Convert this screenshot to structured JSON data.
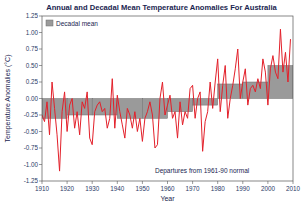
{
  "chart_data": {
    "type": "bar",
    "title": "Annual and Decadal Mean Temperature Anomalies For Australia",
    "x_label": "Year",
    "y_label": "Temperature Anomalies (°C)",
    "annotation": "Departures from 1961-90 normal",
    "xlim": [
      1910,
      2010
    ],
    "xticks": [
      1910,
      1920,
      1930,
      1940,
      1950,
      1960,
      1970,
      1980,
      1990,
      2000,
      2010
    ],
    "ylim": [
      -1.25,
      1.25
    ],
    "yticks": [
      -1.25,
      {
        "value": -1,
        "label": "-1.00"
      },
      -0.75,
      {
        "value": -0.5,
        "label": "-0.50"
      },
      -0.25,
      {
        "value": 0,
        "label": "0.00"
      },
      0.25,
      {
        "value": 0.5,
        "label": "0.50"
      },
      0.75,
      {
        "value": 1,
        "label": "1.00"
      },
      1.25
    ],
    "grid": false,
    "legend": "top-left",
    "series": [
      {
        "name": "Decadal mean",
        "type": "bar",
        "color": "#9a9a9a",
        "bins": [
          1910,
          1920,
          1930,
          1940,
          1950,
          1960,
          1970,
          1980,
          1990,
          2000,
          2010
        ],
        "values": [
          -0.3,
          -0.25,
          -0.25,
          -0.3,
          -0.3,
          -0.2,
          -0.1,
          0.22,
          0.25,
          0.5
        ]
      },
      {
        "type": "line",
        "color": "#e3202a",
        "x": [
          1910,
          1911,
          1912,
          1913,
          1914,
          1915,
          1916,
          1917,
          1918,
          1919,
          1920,
          1921,
          1922,
          1923,
          1924,
          1925,
          1926,
          1927,
          1928,
          1929,
          1930,
          1931,
          1932,
          1933,
          1934,
          1935,
          1936,
          1937,
          1938,
          1939,
          1940,
          1941,
          1942,
          1943,
          1944,
          1945,
          1946,
          1947,
          1948,
          1949,
          1950,
          1951,
          1952,
          1953,
          1954,
          1955,
          1956,
          1957,
          1958,
          1959,
          1960,
          1961,
          1962,
          1963,
          1964,
          1965,
          1966,
          1967,
          1968,
          1969,
          1970,
          1971,
          1972,
          1973,
          1974,
          1975,
          1976,
          1977,
          1978,
          1979,
          1980,
          1981,
          1982,
          1983,
          1984,
          1985,
          1986,
          1987,
          1988,
          1989,
          1990,
          1991,
          1992,
          1993,
          1994,
          1995,
          1996,
          1997,
          1998,
          1999,
          2000,
          2001,
          2002,
          2003,
          2004,
          2005,
          2006,
          2007,
          2008,
          2009
        ],
        "values": [
          -0.25,
          -0.35,
          -0.05,
          -0.55,
          0.25,
          -0.15,
          -0.55,
          -1.1,
          -0.2,
          0.1,
          -0.5,
          -0.1,
          0.0,
          -0.45,
          -0.2,
          -0.55,
          -0.05,
          -0.15,
          0.1,
          -0.6,
          -0.7,
          -0.2,
          -0.1,
          -0.05,
          -0.2,
          -0.15,
          -0.45,
          -0.3,
          0.3,
          -0.45,
          0.05,
          -0.2,
          -0.4,
          -0.6,
          -0.15,
          -0.25,
          -0.45,
          -0.2,
          -0.5,
          -0.3,
          -0.65,
          -0.3,
          -0.2,
          -0.05,
          -0.25,
          -0.75,
          -0.7,
          0.0,
          0.25,
          -0.25,
          -0.1,
          0.05,
          -0.3,
          -0.2,
          -0.6,
          -0.05,
          -0.4,
          -0.2,
          -0.3,
          0.15,
          0.2,
          -0.3,
          0.0,
          0.1,
          -0.8,
          -0.35,
          -0.2,
          0.25,
          -0.15,
          0.25,
          0.6,
          -0.2,
          0.2,
          0.5,
          -0.3,
          0.0,
          0.2,
          0.45,
          0.75,
          0.0,
          0.25,
          0.45,
          -0.1,
          0.15,
          0.2,
          0.1,
          0.3,
          0.15,
          0.6,
          0.4,
          -0.1,
          0.45,
          0.65,
          0.4,
          0.3,
          1.05,
          0.4,
          0.7,
          0.25,
          0.9
        ]
      }
    ]
  }
}
